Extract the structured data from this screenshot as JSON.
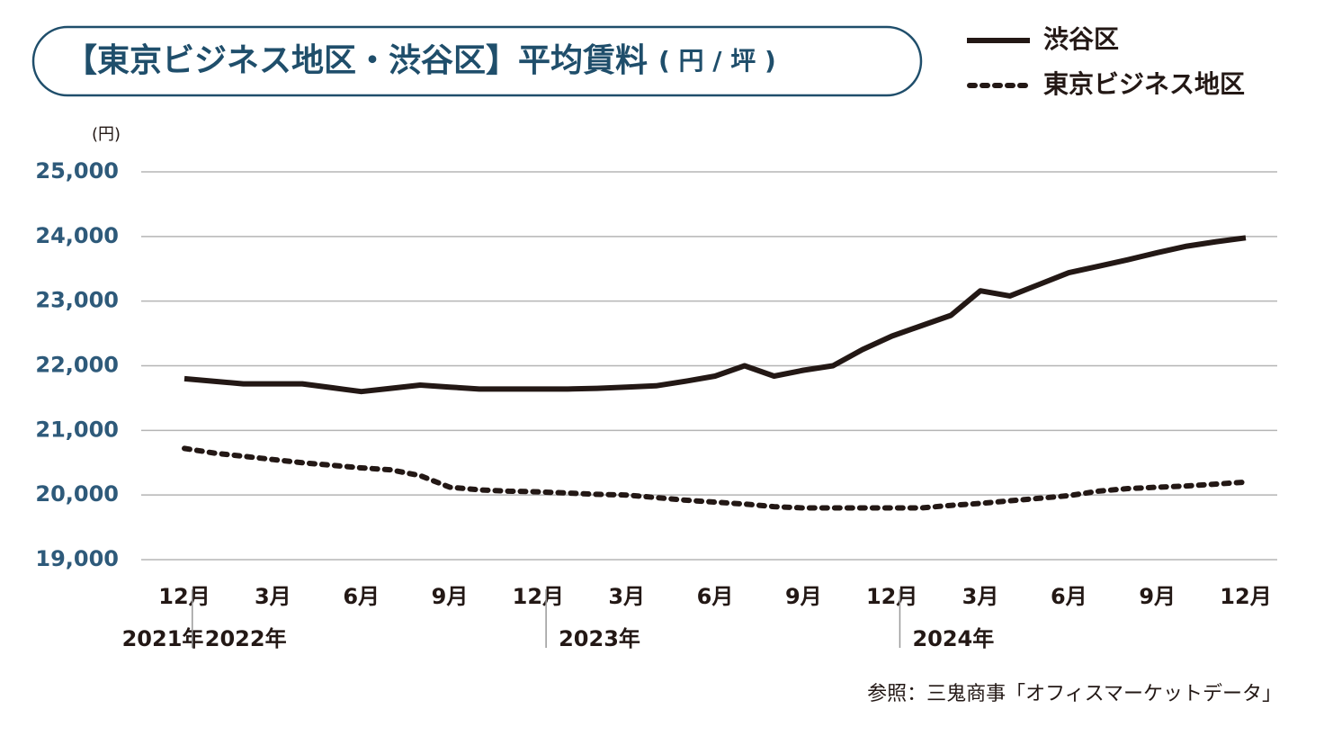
{
  "chart_data": {
    "type": "line",
    "title": "【東京ビジネス地区・渋谷区】平均賃料",
    "title_unit": "( 円 / 坪 )",
    "y_axis_label": "(円)",
    "source": "参照：三鬼商事「オフィスマーケットデータ」",
    "categories": [
      "12月",
      null,
      null,
      "3月",
      null,
      null,
      "6月",
      null,
      null,
      "9月",
      null,
      null,
      "12月",
      null,
      null,
      "3月",
      null,
      null,
      "6月",
      null,
      null,
      "9月",
      null,
      null,
      "12月",
      null,
      null,
      "3月",
      null,
      null,
      "6月",
      null,
      null,
      "9月",
      null,
      null,
      "12月"
    ],
    "years": [
      "2021年",
      "2022年",
      "2023年",
      "2024年"
    ],
    "series": [
      {
        "name": "渋谷区",
        "color": "#231815",
        "dash": false,
        "values": [
          21800,
          21760,
          21720,
          21720,
          21720,
          21660,
          21600,
          21650,
          21700,
          21670,
          21640,
          21640,
          21640,
          21640,
          21650,
          21670,
          21690,
          21760,
          21840,
          22000,
          21840,
          21930,
          22000,
          22250,
          22460,
          22620,
          22780,
          23160,
          23080,
          23260,
          23440,
          23540,
          23640,
          23750,
          23850,
          23920,
          23980
        ]
      },
      {
        "name": "東京ビジネス地区",
        "color": "#231815",
        "dash": true,
        "values": [
          20720,
          20650,
          20600,
          20550,
          20500,
          20460,
          20420,
          20390,
          20300,
          20120,
          20080,
          20060,
          20050,
          20030,
          20010,
          20000,
          19960,
          19920,
          19890,
          19860,
          19820,
          19800,
          19800,
          19800,
          19800,
          19800,
          19840,
          19870,
          19910,
          19950,
          19990,
          20060,
          20100,
          20120,
          20140,
          20170,
          20200
        ]
      }
    ],
    "ylim": [
      19000,
      25000
    ],
    "yticks": [
      {
        "value": 19000,
        "label": "19,000"
      },
      {
        "value": 20000,
        "label": "20,000"
      },
      {
        "value": 21000,
        "label": "21,000"
      },
      {
        "value": 22000,
        "label": "22,000"
      },
      {
        "value": 23000,
        "label": "23,000"
      },
      {
        "value": 24000,
        "label": "24,000"
      },
      {
        "value": 25000,
        "label": "25,000"
      }
    ],
    "grid": true
  }
}
